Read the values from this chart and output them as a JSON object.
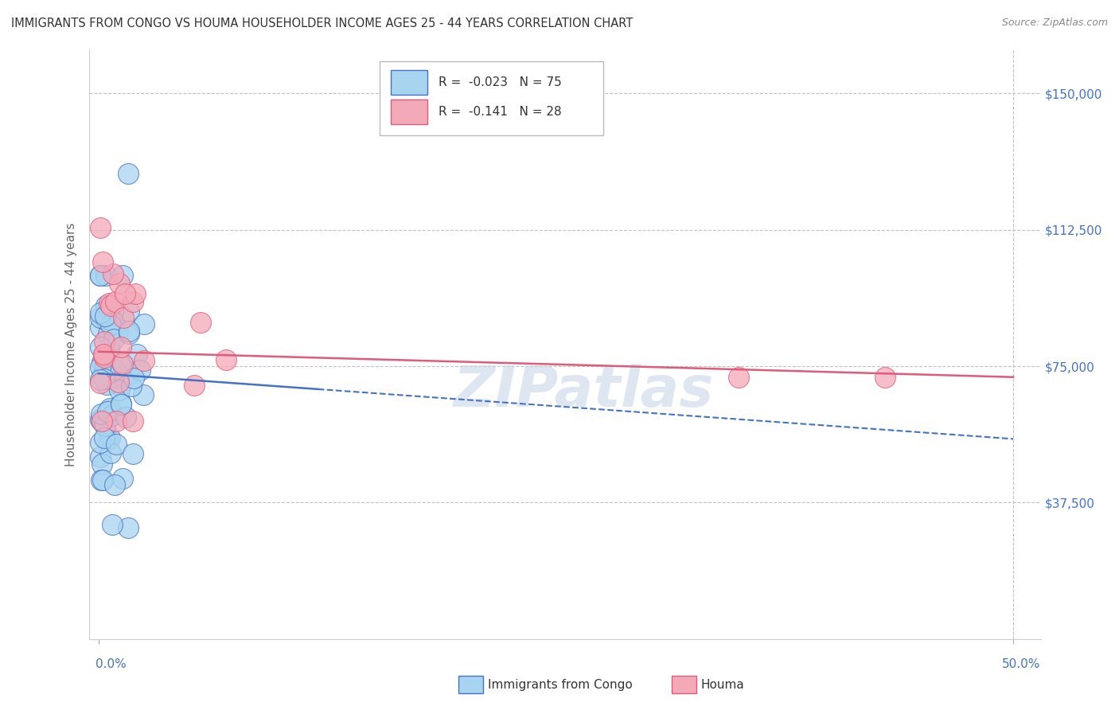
{
  "title": "IMMIGRANTS FROM CONGO VS HOUMA HOUSEHOLDER INCOME AGES 25 - 44 YEARS CORRELATION CHART",
  "source": "Source: ZipAtlas.com",
  "ylabel": "Householder Income Ages 25 - 44 years",
  "legend_label_1": "Immigrants from Congo",
  "legend_label_2": "Houma",
  "r1": -0.023,
  "n1": 75,
  "r2": -0.141,
  "n2": 28,
  "ytick_vals": [
    37500,
    75000,
    112500,
    150000
  ],
  "ytick_labels": [
    "$37,500",
    "$75,000",
    "$112,500",
    "$150,000"
  ],
  "xlim": [
    0.0,
    0.5
  ],
  "ylim": [
    0,
    162000
  ],
  "color_congo": "#a8d4f0",
  "color_houma": "#f4a9b8",
  "trendline_congo_color": "#4472c4",
  "trendline_houma_color": "#e05a7a",
  "watermark": "ZIPatlas",
  "houma_far_points": [
    [
      0.35,
      72000
    ],
    [
      0.43,
      72000
    ]
  ]
}
